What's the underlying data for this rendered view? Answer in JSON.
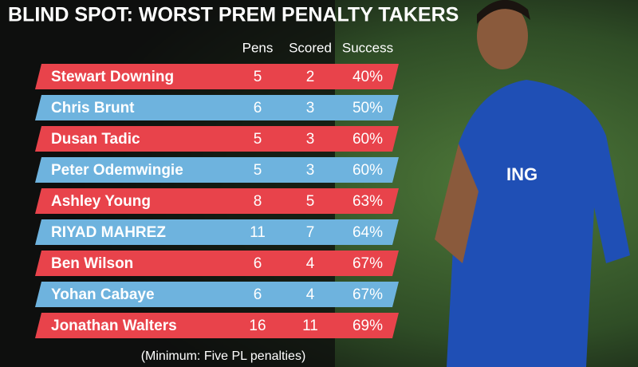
{
  "header": {
    "title": "BLIND SPOT: WORST PREM PENALTY TAKERS"
  },
  "table": {
    "columns": [
      "Pens",
      "Scored",
      "Success"
    ],
    "rows": [
      [
        "Stewart Downing",
        "5",
        "2",
        "40%"
      ],
      [
        "Chris Brunt",
        "6",
        "3",
        "50%"
      ],
      [
        "Dusan Tadic",
        "5",
        "3",
        "60%"
      ],
      [
        "Peter Odemwingie",
        "5",
        "3",
        "60%"
      ],
      [
        "Ashley Young",
        "8",
        "5",
        "63%"
      ],
      [
        "RIYAD MAHREZ",
        "11",
        "7",
        "64%"
      ],
      [
        "Ben Wilson",
        "6",
        "4",
        "67%"
      ],
      [
        "Yohan Cabaye",
        "6",
        "4",
        "67%"
      ],
      [
        "Jonathan Walters",
        "16",
        "11",
        "69%"
      ]
    ]
  },
  "footnote": "(Minimum: Five PL penalties)"
}
